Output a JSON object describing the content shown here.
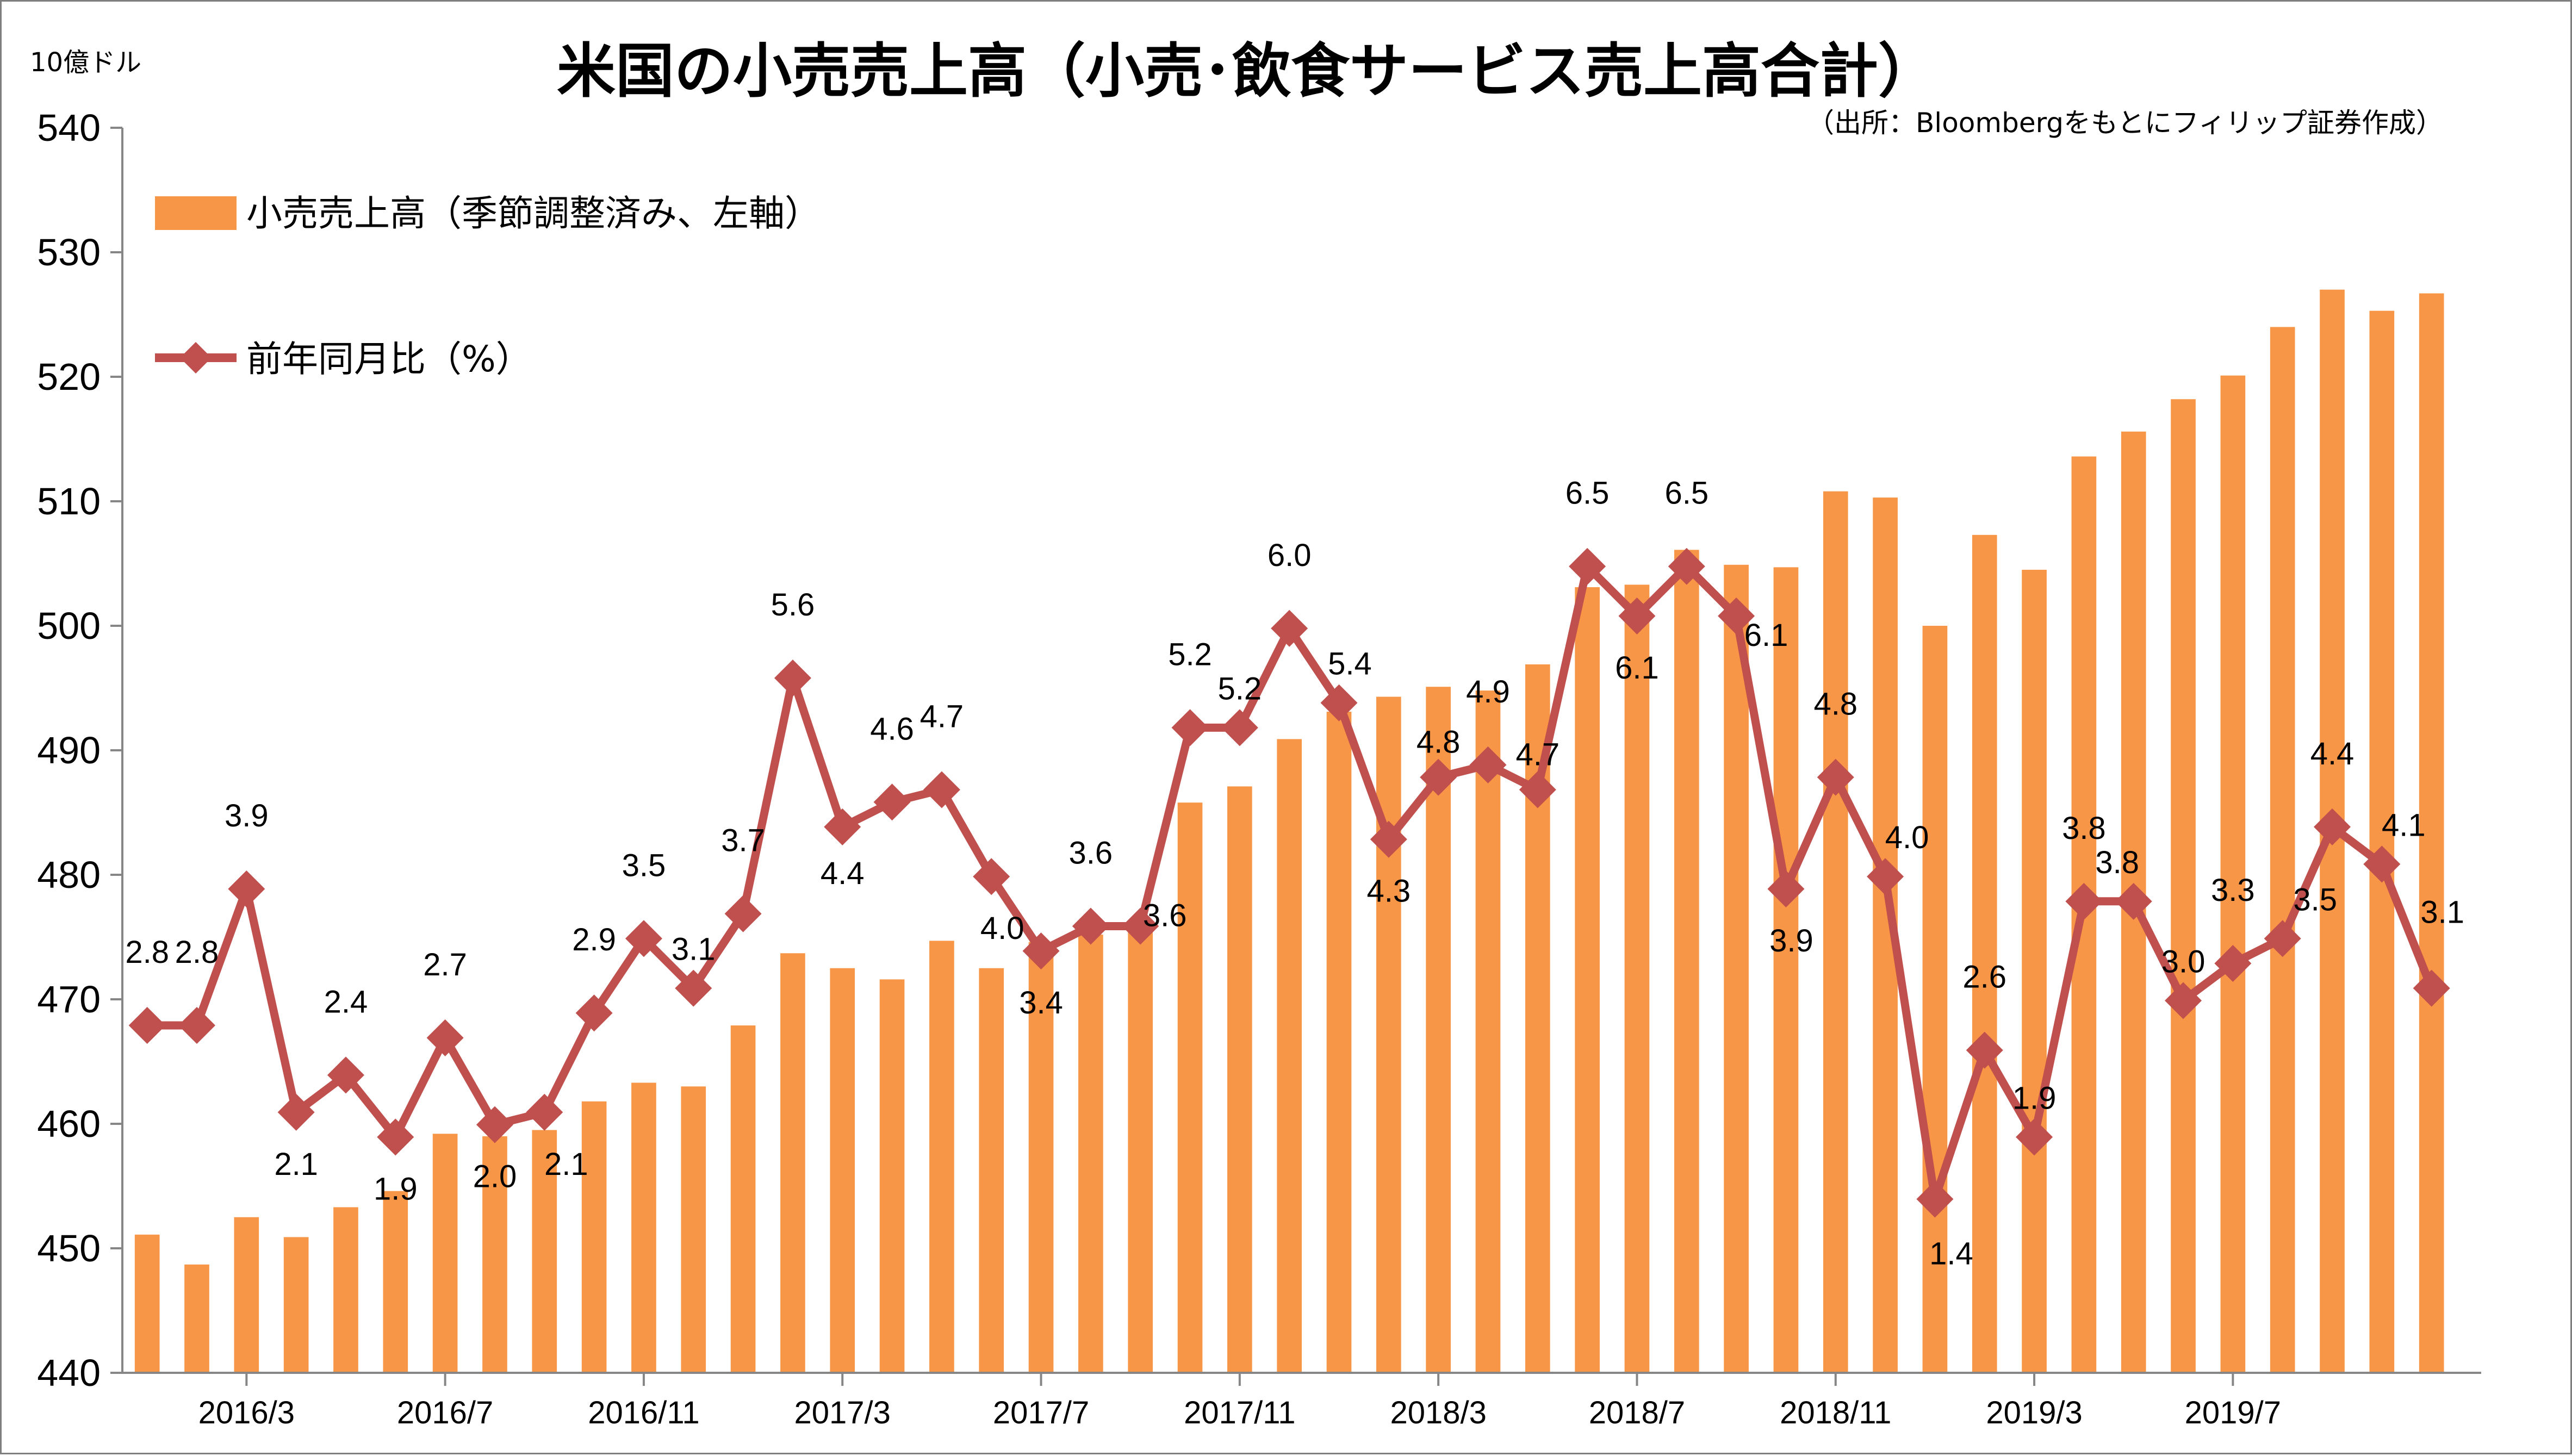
{
  "chart_data": {
    "type": "bar+line",
    "title": "米国の小売売上高（小売･飲食サービス売上高合計）",
    "source": "（出所：Bloombergをもとにフィリップ証券作成）",
    "y_unit_label": "10億ドル",
    "ylim": [
      440,
      540
    ],
    "y_ticks": [
      "440",
      "450",
      "460",
      "470",
      "480",
      "490",
      "500",
      "510",
      "520",
      "530",
      "540"
    ],
    "x_tick_labels": [
      "2016/3",
      "2016/7",
      "2016/11",
      "2017/3",
      "2017/7",
      "2017/11",
      "2018/3",
      "2018/7",
      "2018/11",
      "2019/3",
      "2019/7"
    ],
    "legend_position": "top-left",
    "grid": false,
    "series": [
      {
        "name": "小売売上高（季節調整済み、左軸）",
        "kind": "bar",
        "color": "#F79646",
        "values": [
          451.1,
          448.7,
          452.5,
          450.9,
          453.3,
          454.6,
          459.2,
          459.0,
          459.5,
          461.8,
          463.3,
          463.0,
          467.9,
          473.7,
          472.5,
          471.6,
          474.7,
          472.5,
          474.6,
          475.2,
          476.1,
          485.8,
          487.1,
          490.9,
          493.1,
          494.3,
          495.1,
          494.8,
          496.9,
          503.1,
          503.3,
          506.1,
          504.9,
          504.7,
          510.8,
          510.3,
          500.0,
          507.3,
          504.5,
          513.6,
          515.6,
          518.2,
          520.1,
          524.0,
          527.0,
          525.3,
          526.7
        ]
      },
      {
        "name": "前年同月比（%）",
        "kind": "line",
        "color": "#C0504D",
        "marker": "diamond",
        "values": [
          2.8,
          2.8,
          3.9,
          2.1,
          2.4,
          1.9,
          2.7,
          2.0,
          2.1,
          2.9,
          3.5,
          3.1,
          3.7,
          5.6,
          4.4,
          4.6,
          4.7,
          4.0,
          3.4,
          3.6,
          3.6,
          5.2,
          5.2,
          6.0,
          5.4,
          4.3,
          4.8,
          4.9,
          4.7,
          6.5,
          6.1,
          6.5,
          6.1,
          3.9,
          4.8,
          4.0,
          1.4,
          2.6,
          1.9,
          3.8,
          3.8,
          3.0,
          3.3,
          3.5,
          4.4,
          4.1,
          3.1
        ],
        "labels": [
          "2.8",
          "2.8",
          "3.9",
          "2.1",
          "2.4",
          "1.9",
          "2.7",
          "2.0",
          "2.1",
          "2.9",
          "3.5",
          "3.1",
          "3.7",
          "5.6",
          "4.4",
          "4.6",
          "4.7",
          "4.0",
          "3.4",
          "3.6",
          "3.6",
          "5.2",
          "5.2",
          "6.0",
          "5.4",
          "4.3",
          "4.8",
          "4.9",
          "4.7",
          "6.5",
          "6.1",
          "6.5",
          "6.1",
          "3.9",
          "4.8",
          "4.0",
          "1.4",
          "2.6",
          "1.9",
          "3.8",
          "3.8",
          "3.0",
          "3.3",
          "3.5",
          "4.4",
          "4.1",
          "3.1"
        ]
      }
    ]
  }
}
